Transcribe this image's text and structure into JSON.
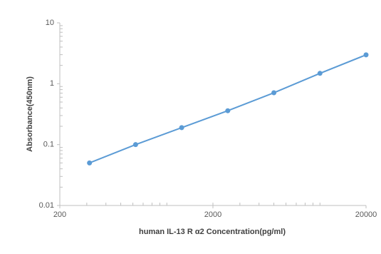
{
  "chart_data": {
    "type": "line",
    "x_label": "human IL-13 R α2  Concentration(pg/ml)",
    "y_label": "Absorbance(450nm)",
    "x": [
      312.5,
      625,
      1250,
      2500,
      5000,
      10000,
      20000
    ],
    "series": [
      {
        "color": "#5b9bd5",
        "values": [
          0.05,
          0.1,
          0.19,
          0.36,
          0.71,
          1.48,
          2.98
        ]
      }
    ],
    "xlim": [
      200,
      20000
    ],
    "xticks": [
      200,
      2000,
      20000
    ],
    "xscale": "log",
    "ylim": [
      0.01,
      10
    ],
    "yticks": [
      10,
      1,
      0.1,
      0.01
    ],
    "yscale": "log",
    "grid": false
  }
}
